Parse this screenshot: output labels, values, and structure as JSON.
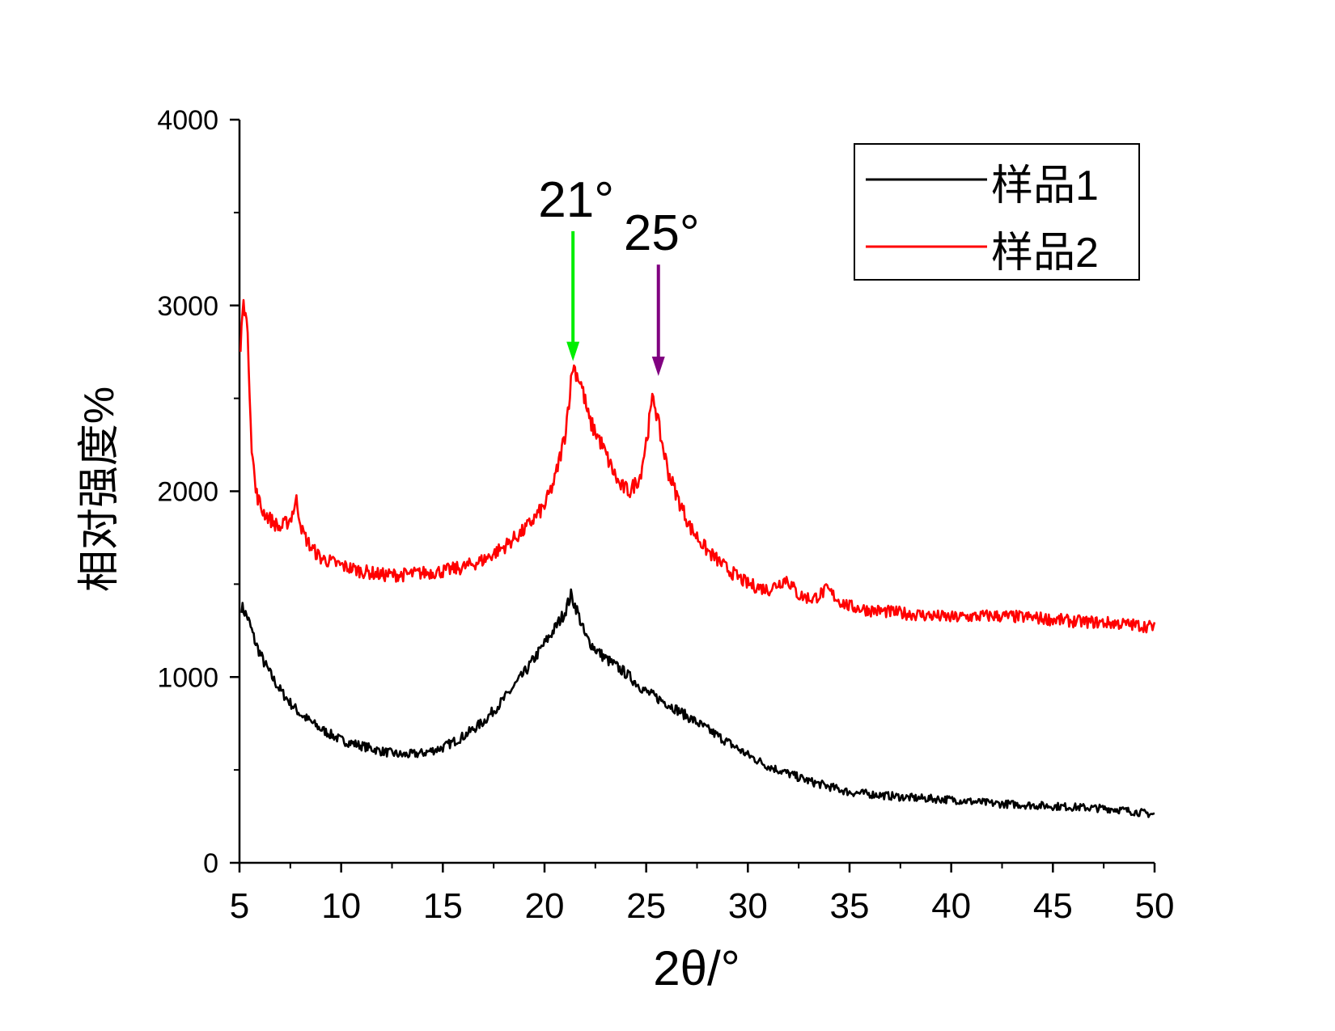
{
  "chart_data": {
    "type": "line",
    "title": "",
    "xlabel": "2θ/°",
    "ylabel": "相对强度%",
    "xlim": [
      5,
      50
    ],
    "ylim": [
      0,
      4000
    ],
    "xticks": [
      5,
      10,
      15,
      20,
      25,
      30,
      35,
      40,
      45,
      50
    ],
    "yticks": [
      0,
      1000,
      2000,
      3000,
      4000
    ],
    "grid": false,
    "legend_position": "top-right",
    "series": [
      {
        "name": "样品1",
        "color": "#000000",
        "x": [
          5.1,
          5.4,
          5.8,
          6.2,
          6.6,
          7,
          7.5,
          8,
          8.5,
          9,
          9.5,
          10,
          11,
          12,
          13,
          14,
          15,
          16,
          17,
          18,
          19,
          20,
          20.5,
          21,
          21.3,
          21.6,
          22,
          22.5,
          23,
          24,
          25,
          26,
          27,
          28,
          29,
          30,
          31,
          32,
          33,
          34,
          35,
          36,
          38,
          40,
          42,
          44,
          46,
          48,
          50
        ],
        "values": [
          1380,
          1320,
          1180,
          1080,
          1000,
          930,
          860,
          800,
          760,
          720,
          690,
          660,
          630,
          600,
          580,
          590,
          620,
          680,
          760,
          880,
          1020,
          1180,
          1260,
          1350,
          1440,
          1360,
          1220,
          1150,
          1100,
          1020,
          920,
          860,
          790,
          720,
          650,
          580,
          520,
          480,
          440,
          410,
          380,
          370,
          350,
          340,
          320,
          310,
          300,
          290,
          260
        ]
      },
      {
        "name": "样品2",
        "color": "#ff0000",
        "x": [
          5.05,
          5.15,
          5.3,
          5.45,
          5.6,
          5.8,
          6.1,
          6.5,
          7,
          7.5,
          7.8,
          8.1,
          8.5,
          9,
          10,
          11,
          12,
          13,
          14,
          15,
          16,
          17,
          18,
          19,
          20,
          20.5,
          21,
          21.4,
          21.8,
          22.2,
          22.7,
          23.2,
          23.7,
          24.2,
          24.7,
          25.05,
          25.35,
          25.7,
          26.1,
          26.6,
          27.2,
          28,
          29,
          30,
          31,
          31.9,
          32.5,
          33.2,
          33.9,
          34.5,
          35,
          36,
          38,
          40,
          42,
          44,
          46,
          48,
          50
        ],
        "values": [
          2750,
          2980,
          3010,
          2700,
          2250,
          2000,
          1900,
          1850,
          1800,
          1850,
          1950,
          1780,
          1700,
          1640,
          1600,
          1570,
          1550,
          1550,
          1560,
          1570,
          1590,
          1630,
          1700,
          1790,
          1920,
          2060,
          2300,
          2680,
          2580,
          2380,
          2280,
          2150,
          2030,
          2000,
          2080,
          2300,
          2520,
          2300,
          2100,
          1950,
          1800,
          1680,
          1580,
          1500,
          1470,
          1530,
          1440,
          1420,
          1470,
          1410,
          1380,
          1360,
          1340,
          1320,
          1330,
          1320,
          1300,
          1290,
          1270
        ]
      }
    ],
    "annotations": [
      {
        "label": "21°",
        "x": 21.4,
        "arrow_color": "#00ee00",
        "arrow_from_y": 3400,
        "arrow_to_y": 2700
      },
      {
        "label": "25°",
        "x": 25.6,
        "arrow_color": "#800080",
        "arrow_from_y": 3220,
        "arrow_to_y": 2620
      }
    ]
  }
}
